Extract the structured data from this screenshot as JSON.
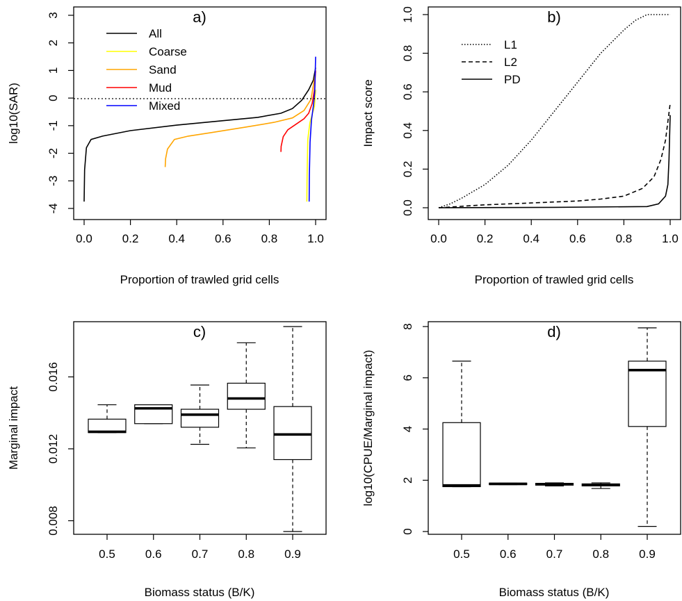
{
  "chart_data": [
    {
      "panel": "a)",
      "type": "line",
      "xlabel": "Proportion of trawled grid cells",
      "ylabel": "log10(SAR)",
      "xlim": [
        0,
        1
      ],
      "ylim": [
        -4,
        3
      ],
      "x_ticks": [
        "0.0",
        "0.2",
        "0.4",
        "0.6",
        "0.8",
        "1.0"
      ],
      "y_ticks": [
        "-4",
        "-3",
        "-2",
        "-1",
        "0",
        "1",
        "2",
        "3"
      ],
      "reference_line": {
        "y": 0,
        "style": "dotted"
      },
      "legend_position": "top-left",
      "series": [
        {
          "name": "All",
          "color": "#000000",
          "points": [
            [
              0.0,
              -3.75
            ],
            [
              0.002,
              -2.6
            ],
            [
              0.01,
              -1.8
            ],
            [
              0.03,
              -1.5
            ],
            [
              0.08,
              -1.38
            ],
            [
              0.2,
              -1.18
            ],
            [
              0.4,
              -0.98
            ],
            [
              0.6,
              -0.82
            ],
            [
              0.75,
              -0.7
            ],
            [
              0.85,
              -0.55
            ],
            [
              0.9,
              -0.38
            ],
            [
              0.94,
              -0.08
            ],
            [
              0.97,
              0.3
            ],
            [
              0.99,
              0.65
            ],
            [
              1.0,
              1.1
            ]
          ]
        },
        {
          "name": "Coarse",
          "color": "#ffff00",
          "points": [
            [
              0.962,
              -3.75
            ],
            [
              0.963,
              -2.8
            ],
            [
              0.966,
              -1.5
            ],
            [
              0.975,
              -0.9
            ],
            [
              0.985,
              -0.6
            ],
            [
              0.995,
              -0.3
            ],
            [
              1.0,
              0.3
            ]
          ]
        },
        {
          "name": "Sand",
          "color": "#ffa500",
          "points": [
            [
              0.35,
              -2.5
            ],
            [
              0.352,
              -2.2
            ],
            [
              0.36,
              -1.85
            ],
            [
              0.39,
              -1.5
            ],
            [
              0.45,
              -1.38
            ],
            [
              0.55,
              -1.25
            ],
            [
              0.7,
              -1.05
            ],
            [
              0.82,
              -0.88
            ],
            [
              0.9,
              -0.72
            ],
            [
              0.95,
              -0.45
            ],
            [
              0.98,
              -0.05
            ],
            [
              1.0,
              0.95
            ]
          ]
        },
        {
          "name": "Mud",
          "color": "#ff0000",
          "points": [
            [
              0.85,
              -1.95
            ],
            [
              0.851,
              -1.75
            ],
            [
              0.86,
              -1.4
            ],
            [
              0.88,
              -1.15
            ],
            [
              0.92,
              -0.92
            ],
            [
              0.95,
              -0.75
            ],
            [
              0.97,
              -0.55
            ],
            [
              0.985,
              -0.2
            ],
            [
              0.995,
              0.3
            ],
            [
              1.0,
              1.0
            ]
          ]
        },
        {
          "name": "Mixed",
          "color": "#0000ff",
          "points": [
            [
              0.972,
              -3.75
            ],
            [
              0.973,
              -2.8
            ],
            [
              0.976,
              -1.6
            ],
            [
              0.982,
              -0.8
            ],
            [
              0.99,
              -0.3
            ],
            [
              0.996,
              0.2
            ],
            [
              1.0,
              1.5
            ]
          ]
        }
      ]
    },
    {
      "panel": "b)",
      "type": "line",
      "xlabel": "Proportion of trawled grid cells",
      "ylabel": "Impact score",
      "xlim": [
        0,
        1
      ],
      "ylim": [
        0,
        1
      ],
      "x_ticks": [
        "0.0",
        "0.2",
        "0.4",
        "0.6",
        "0.8",
        "1.0"
      ],
      "y_ticks": [
        "0.0",
        "0.2",
        "0.4",
        "0.6",
        "0.8",
        "1.0"
      ],
      "legend_position": "top-left",
      "series": [
        {
          "name": "L1",
          "style": "dotted",
          "color": "#000000",
          "points": [
            [
              0.0,
              0.0
            ],
            [
              0.05,
              0.02
            ],
            [
              0.1,
              0.05
            ],
            [
              0.2,
              0.12
            ],
            [
              0.3,
              0.22
            ],
            [
              0.4,
              0.35
            ],
            [
              0.5,
              0.5
            ],
            [
              0.6,
              0.65
            ],
            [
              0.7,
              0.8
            ],
            [
              0.8,
              0.92
            ],
            [
              0.85,
              0.97
            ],
            [
              0.9,
              1.0
            ],
            [
              1.0,
              1.0
            ]
          ]
        },
        {
          "name": "L2",
          "style": "dashed",
          "color": "#000000",
          "points": [
            [
              0.0,
              0.0
            ],
            [
              0.2,
              0.015
            ],
            [
              0.4,
              0.025
            ],
            [
              0.6,
              0.035
            ],
            [
              0.7,
              0.045
            ],
            [
              0.8,
              0.06
            ],
            [
              0.88,
              0.1
            ],
            [
              0.93,
              0.16
            ],
            [
              0.96,
              0.25
            ],
            [
              0.98,
              0.35
            ],
            [
              1.0,
              0.54
            ]
          ]
        },
        {
          "name": "PD",
          "style": "solid",
          "color": "#000000",
          "points": [
            [
              0.0,
              0.0
            ],
            [
              0.5,
              0.002
            ],
            [
              0.9,
              0.006
            ],
            [
              0.95,
              0.02
            ],
            [
              0.98,
              0.06
            ],
            [
              0.99,
              0.12
            ],
            [
              0.995,
              0.25
            ],
            [
              1.0,
              0.48
            ]
          ]
        }
      ]
    },
    {
      "panel": "c)",
      "type": "box",
      "xlabel": "Biomass status (B/K)",
      "ylabel": "Marginal impact",
      "ylim": [
        0.0074,
        0.0188
      ],
      "y_ticks": [
        0.008,
        0.012,
        0.016
      ],
      "y_tick_labels": [
        "0.008",
        "0.012",
        "0.016"
      ],
      "categories": [
        "0.5",
        "0.6",
        "0.7",
        "0.8",
        "0.9"
      ],
      "boxes": [
        {
          "min": 0.0129,
          "q1": 0.0129,
          "median": 0.01295,
          "q3": 0.01365,
          "max": 0.01445
        },
        {
          "min": 0.0134,
          "q1": 0.0134,
          "median": 0.01425,
          "q3": 0.01445,
          "max": 0.01445
        },
        {
          "min": 0.01225,
          "q1": 0.0132,
          "median": 0.0139,
          "q3": 0.0142,
          "max": 0.01555
        },
        {
          "min": 0.01205,
          "q1": 0.0142,
          "median": 0.0148,
          "q3": 0.01565,
          "max": 0.0179
        },
        {
          "min": 0.0074,
          "q1": 0.0114,
          "median": 0.0128,
          "q3": 0.01435,
          "max": 0.0188
        }
      ]
    },
    {
      "panel": "d)",
      "type": "box",
      "xlabel": "Biomass status (B/K)",
      "ylabel": "log10(CPUE/Marginal impact)",
      "ylim": [
        0,
        8
      ],
      "y_ticks": [
        0,
        2,
        4,
        6,
        8
      ],
      "y_tick_labels": [
        "0",
        "2",
        "4",
        "6",
        "8"
      ],
      "categories": [
        "0.5",
        "0.6",
        "0.7",
        "0.8",
        "0.9"
      ],
      "boxes": [
        {
          "min": 1.75,
          "q1": 1.75,
          "median": 1.8,
          "q3": 4.25,
          "max": 6.65
        },
        {
          "min": 1.83,
          "q1": 1.83,
          "median": 1.86,
          "q3": 1.89,
          "max": 1.89
        },
        {
          "min": 1.78,
          "q1": 1.81,
          "median": 1.85,
          "q3": 1.88,
          "max": 1.9
        },
        {
          "min": 1.68,
          "q1": 1.78,
          "median": 1.82,
          "q3": 1.86,
          "max": 1.9
        },
        {
          "min": 0.2,
          "q1": 4.1,
          "median": 6.3,
          "q3": 6.65,
          "max": 7.95
        }
      ]
    }
  ]
}
